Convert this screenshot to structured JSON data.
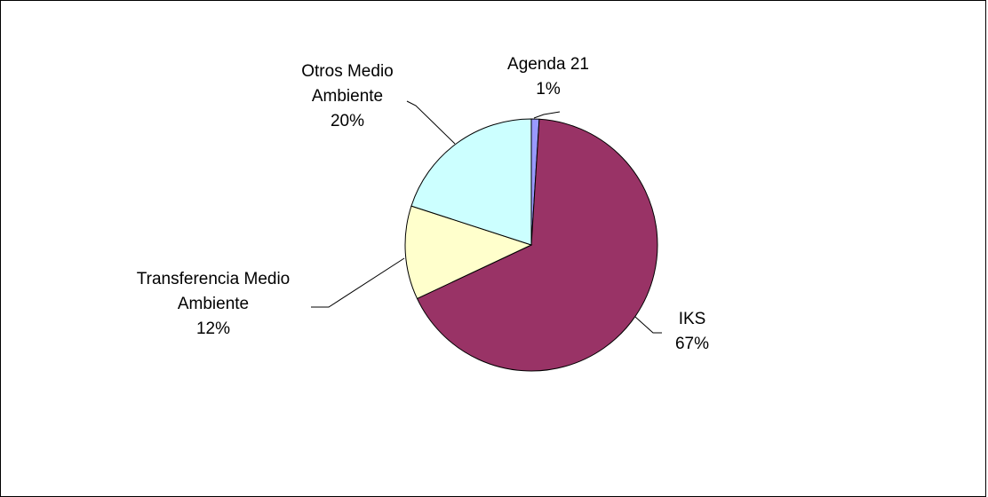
{
  "chart_data": {
    "type": "pie",
    "title": "",
    "start_angle_deg": 90,
    "direction": "clockwise",
    "slices": [
      {
        "label_lines": [
          "Agenda 21"
        ],
        "value": 1,
        "percent_label": "1%",
        "color": "#9999ff"
      },
      {
        "label_lines": [
          "IKS"
        ],
        "value": 67,
        "percent_label": "67%",
        "color": "#993366"
      },
      {
        "label_lines": [
          "Transferencia Medio",
          "Ambiente"
        ],
        "value": 12,
        "percent_label": "12%",
        "color": "#ffffcc"
      },
      {
        "label_lines": [
          "Otros Medio",
          "Ambiente"
        ],
        "value": 20,
        "percent_label": "20%",
        "color": "#ccffff"
      }
    ],
    "legend": "none"
  }
}
